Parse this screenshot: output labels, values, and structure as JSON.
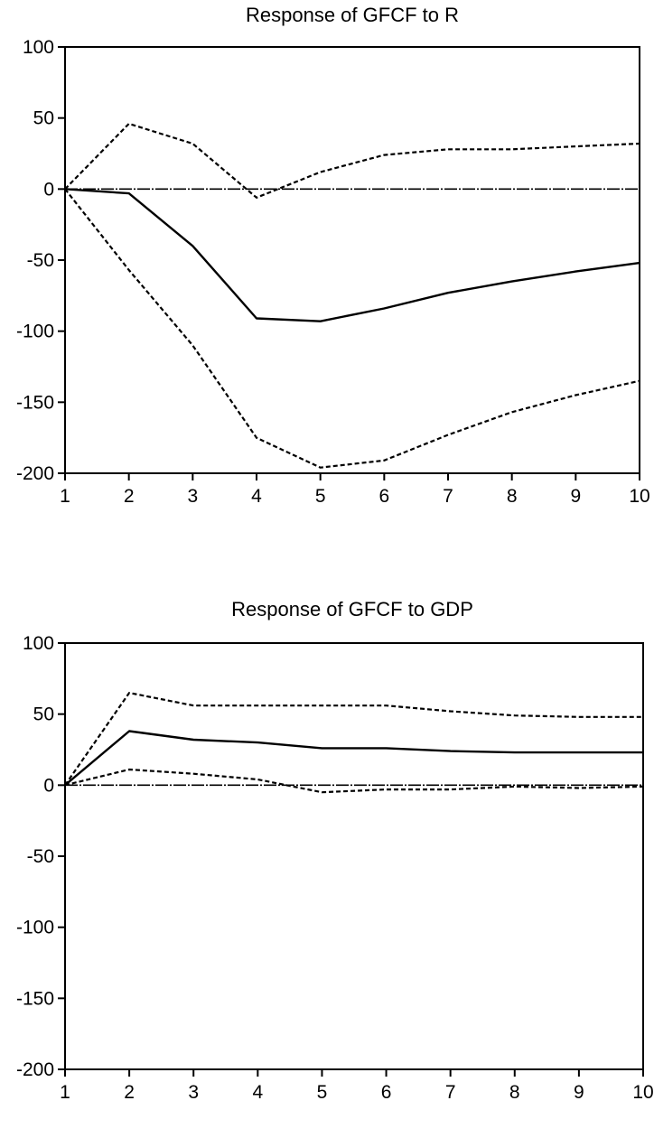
{
  "chart_data": [
    {
      "type": "line",
      "title": "Response of GFCF to R",
      "xlabel": "",
      "ylabel": "",
      "x": [
        1,
        2,
        3,
        4,
        5,
        6,
        7,
        8,
        9,
        10
      ],
      "xticks": [
        "1",
        "2",
        "3",
        "4",
        "5",
        "6",
        "7",
        "8",
        "9",
        "10"
      ],
      "yticks": [
        "100",
        "50",
        "0",
        "-50",
        "-100",
        "-150",
        "-200"
      ],
      "ylim": [
        -200,
        100
      ],
      "grid": false,
      "series": [
        {
          "style": "solid",
          "values": [
            0,
            -3,
            -40,
            -91,
            -93,
            -84,
            -73,
            -65,
            -58,
            -52
          ]
        },
        {
          "style": "dashed",
          "values": [
            0,
            46,
            32,
            -6,
            12,
            24,
            28,
            28,
            30,
            32
          ]
        },
        {
          "style": "dashed",
          "values": [
            0,
            -57,
            -110,
            -175,
            -196,
            -191,
            -173,
            -157,
            -145,
            -135
          ]
        },
        {
          "style": "zero",
          "values": [
            0,
            0,
            0,
            0,
            0,
            0,
            0,
            0,
            0,
            0
          ]
        }
      ]
    },
    {
      "type": "line",
      "title": "Response of GFCF to GDP",
      "xlabel": "",
      "ylabel": "",
      "x": [
        1,
        2,
        3,
        4,
        5,
        6,
        7,
        8,
        9,
        10
      ],
      "xticks": [
        "1",
        "2",
        "3",
        "4",
        "5",
        "6",
        "7",
        "8",
        "9",
        "10"
      ],
      "yticks": [
        "100",
        "50",
        "0",
        "-50",
        "-100",
        "-150",
        "-200"
      ],
      "ylim": [
        -200,
        100
      ],
      "grid": false,
      "series": [
        {
          "style": "solid",
          "values": [
            0,
            38,
            32,
            30,
            26,
            26,
            24,
            23,
            23,
            23
          ]
        },
        {
          "style": "dashed",
          "values": [
            0,
            65,
            56,
            56,
            56,
            56,
            52,
            49,
            48,
            48
          ]
        },
        {
          "style": "dashed",
          "values": [
            0,
            11,
            8,
            4,
            -5,
            -3,
            -3,
            -1,
            -2,
            -1
          ]
        },
        {
          "style": "zero",
          "values": [
            0,
            0,
            0,
            0,
            0,
            0,
            0,
            0,
            0,
            0
          ]
        }
      ]
    }
  ]
}
